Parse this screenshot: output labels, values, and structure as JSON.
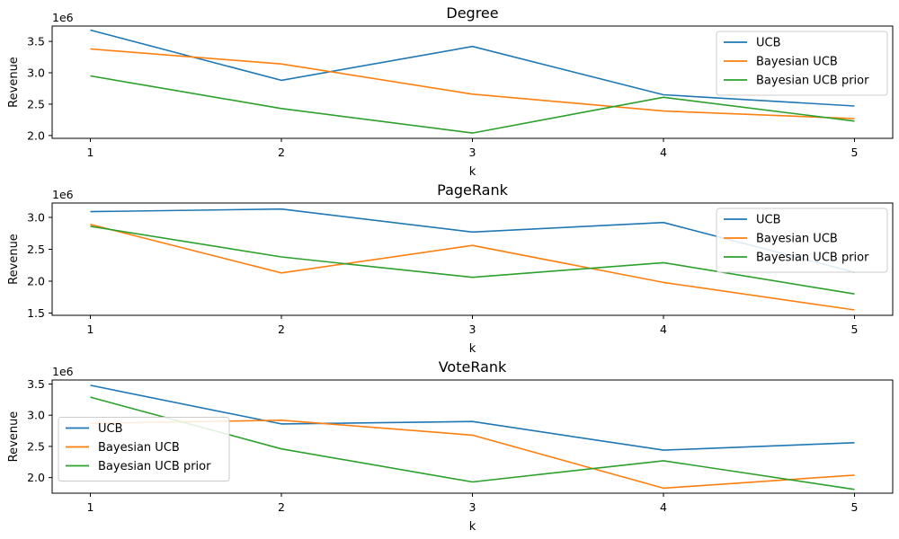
{
  "colors": {
    "UCB": "#1f77b4",
    "Bayesian UCB": "#ff7f0e",
    "Bayesian UCB prior": "#2ca02c"
  },
  "chart_data": [
    {
      "type": "line",
      "title": "Degree",
      "xlabel": "k",
      "ylabel": "Revenue",
      "offset_text": "1e6",
      "x": [
        1,
        2,
        3,
        4,
        5
      ],
      "xlim": [
        0.8,
        5.2
      ],
      "ylim": [
        1.955,
        3.745
      ],
      "yticks": [
        2.0,
        2.5,
        3.0,
        3.5
      ],
      "legend_position": "upper right",
      "grid": false,
      "series": [
        {
          "name": "UCB",
          "values": [
            3.68,
            2.88,
            3.42,
            2.65,
            2.47
          ]
        },
        {
          "name": "Bayesian UCB",
          "values": [
            3.38,
            3.14,
            2.66,
            2.39,
            2.27
          ]
        },
        {
          "name": "Bayesian UCB prior",
          "values": [
            2.95,
            2.43,
            2.04,
            2.61,
            2.23
          ]
        }
      ]
    },
    {
      "type": "line",
      "title": "PageRank",
      "xlabel": "k",
      "ylabel": "Revenue",
      "offset_text": "1e6",
      "x": [
        1,
        2,
        3,
        4,
        5
      ],
      "xlim": [
        0.8,
        5.2
      ],
      "ylim": [
        1.465,
        3.225
      ],
      "yticks": [
        1.5,
        2.0,
        2.5,
        3.0
      ],
      "legend_position": "upper right",
      "grid": false,
      "series": [
        {
          "name": "UCB",
          "values": [
            3.09,
            3.13,
            2.77,
            2.92,
            2.14
          ]
        },
        {
          "name": "Bayesian UCB",
          "values": [
            2.89,
            2.13,
            2.56,
            1.98,
            1.55
          ]
        },
        {
          "name": "Bayesian UCB prior",
          "values": [
            2.86,
            2.38,
            2.06,
            2.29,
            1.8
          ]
        }
      ]
    },
    {
      "type": "line",
      "title": "VoteRank",
      "xlabel": "k",
      "ylabel": "Revenue",
      "offset_text": "1e6",
      "x": [
        1,
        2,
        3,
        4,
        5
      ],
      "xlim": [
        0.8,
        5.2
      ],
      "ylim": [
        1.75,
        3.565
      ],
      "yticks": [
        2.0,
        2.5,
        3.0,
        3.5
      ],
      "legend_position": "center left",
      "grid": false,
      "series": [
        {
          "name": "UCB",
          "values": [
            3.48,
            2.86,
            2.9,
            2.44,
            2.56
          ]
        },
        {
          "name": "Bayesian UCB",
          "values": [
            2.87,
            2.92,
            2.68,
            1.83,
            2.04
          ]
        },
        {
          "name": "Bayesian UCB prior",
          "values": [
            3.29,
            2.46,
            1.93,
            2.27,
            1.81
          ]
        }
      ]
    }
  ]
}
